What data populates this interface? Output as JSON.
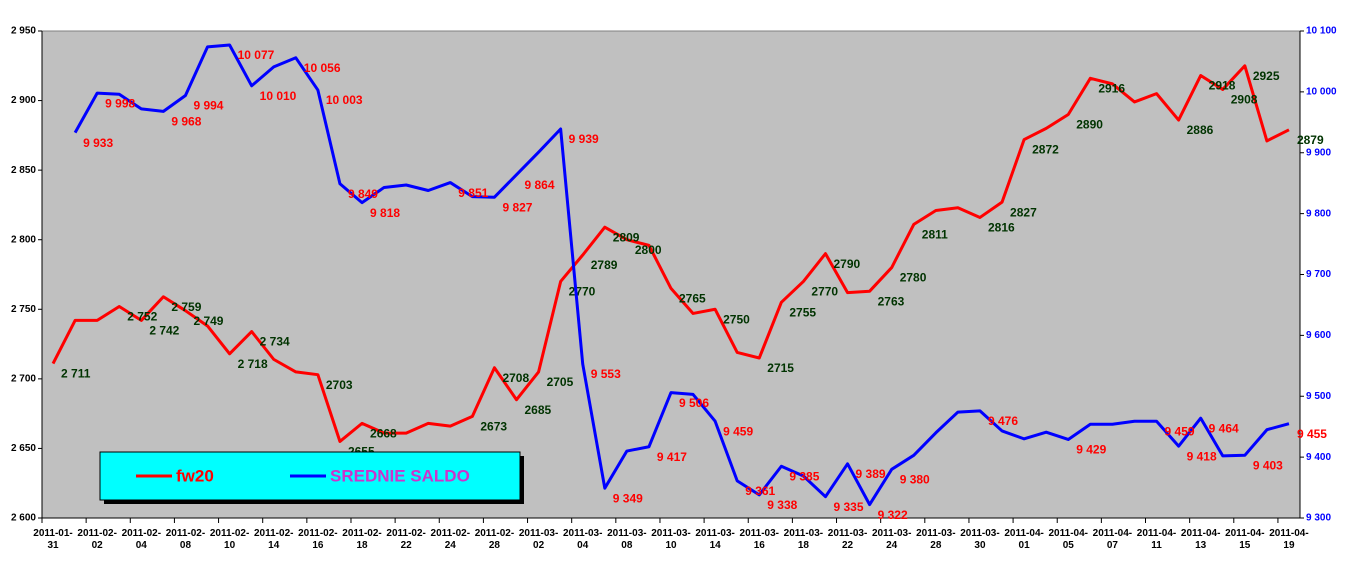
{
  "chart_data": {
    "type": "line",
    "categories": [
      "2011-01-31",
      null,
      "2011-02-02",
      null,
      "2011-02-04",
      null,
      "2011-02-08",
      null,
      "2011-02-10",
      null,
      "2011-02-14",
      null,
      "2011-02-16",
      null,
      "2011-02-18",
      null,
      "2011-02-22",
      null,
      "2011-02-24",
      null,
      "2011-02-28",
      null,
      "2011-03-02",
      null,
      "2011-03-04",
      null,
      "2011-03-08",
      null,
      "2011-03-10",
      null,
      "2011-03-14",
      null,
      "2011-03-16",
      null,
      "2011-03-18",
      null,
      "2011-03-22",
      null,
      "2011-03-24",
      null,
      "2011-03-28",
      null,
      "2011-03-30",
      null,
      "2011-04-01",
      null,
      "2011-04-05",
      null,
      "2011-04-07",
      null,
      "2011-04-11",
      null,
      "2011-04-13",
      null,
      "2011-04-15",
      null,
      "2011-04-19"
    ],
    "series": [
      {
        "name": "fw20",
        "color": "#ff0000",
        "legend_text_color": "#ff0000",
        "label_color": "#003300",
        "values": [
          2711,
          2742,
          2742,
          2752,
          2742,
          2759,
          2749,
          2738,
          2718,
          2734,
          2714,
          2705,
          2703,
          2655,
          2668,
          2661,
          2661,
          2668,
          2666,
          2673,
          2708,
          2685,
          2705,
          2770,
          2789,
          2809,
          2800,
          2796,
          2765,
          2747,
          2750,
          2719,
          2715,
          2755,
          2770,
          2790,
          2762,
          2763,
          2780,
          2811,
          2821,
          2823,
          2816,
          2827,
          2872,
          2880,
          2890,
          2916,
          2912,
          2899,
          2905,
          2886,
          2918,
          2908,
          2925,
          2871,
          2879
        ],
        "value_labels": [
          "2 711",
          null,
          null,
          "2 752",
          "2 742",
          "2 759",
          "2 749",
          null,
          "2 718",
          "2 734",
          null,
          null,
          "2703",
          "2655",
          "2668",
          null,
          null,
          null,
          null,
          "2673",
          "2708",
          "2685",
          "2705",
          "2770",
          "2789",
          "2809",
          "2800",
          null,
          "2765",
          null,
          "2750",
          null,
          "2715",
          "2755",
          "2770",
          "2790",
          null,
          "2763",
          "2780",
          "2811",
          null,
          null,
          "2816",
          "2827",
          "2872",
          null,
          "2890",
          "2916",
          null,
          null,
          null,
          "2886",
          "2918",
          "2908",
          "2925",
          null,
          "2879"
        ]
      },
      {
        "name": "SREDNIE SALDO",
        "color": "#0000ff",
        "legend_text_color": "#cc33cc",
        "label_color": "#ff0000",
        "axis": "y2",
        "values": [
          null,
          9933,
          9998,
          9996,
          9972,
          9968,
          9994,
          10074,
          10077,
          10010,
          10041,
          10056,
          10003,
          9849,
          9818,
          9843,
          9847,
          9838,
          9851,
          9828,
          9827,
          9864,
          9901,
          9939,
          9553,
          9349,
          9410,
          9417,
          9506,
          9503,
          9459,
          9361,
          9338,
          9385,
          9369,
          9335,
          9389,
          9322,
          9380,
          9403,
          9440,
          9474,
          9476,
          9443,
          9430,
          9441,
          9429,
          9454,
          9454,
          9459,
          9459,
          9418,
          9464,
          9402,
          9403,
          9445,
          9455
        ],
        "value_labels": [
          null,
          "9 933",
          "9 998",
          null,
          null,
          "9 968",
          "9 994",
          null,
          "10 077",
          "10 010",
          null,
          "10 056",
          "10 003",
          "9 849",
          "9 818",
          null,
          null,
          null,
          "9 851",
          null,
          "9 827",
          "9 864",
          null,
          "9 939",
          "9 553",
          "9 349",
          null,
          "9 417",
          "9 506",
          null,
          "9 459",
          "9 361",
          "9 338",
          "9 385",
          null,
          "9 335",
          "9 389",
          "9 322",
          "9 380",
          null,
          null,
          null,
          "9 476",
          null,
          null,
          null,
          "9 429",
          null,
          null,
          null,
          "9 459",
          "9 418",
          "9 464",
          null,
          "9 403",
          null,
          "9 455"
        ]
      }
    ],
    "ylim": [
      2600,
      2950
    ],
    "yticks": [
      {
        "value": 2600,
        "label": "2 600"
      },
      {
        "value": 2650,
        "label": "2 650"
      },
      {
        "value": 2700,
        "label": "2 700"
      },
      {
        "value": 2750,
        "label": "2 750"
      },
      {
        "value": 2800,
        "label": "2 800"
      },
      {
        "value": 2850,
        "label": "2 850"
      },
      {
        "value": 2900,
        "label": "2 900"
      },
      {
        "value": 2950,
        "label": "2 950"
      }
    ],
    "y2lim": [
      9300,
      10100
    ],
    "y2ticks": [
      {
        "value": 9300,
        "label": "9 300"
      },
      {
        "value": 9400,
        "label": "9 400"
      },
      {
        "value": 9500,
        "label": "9 500"
      },
      {
        "value": 9600,
        "label": "9 600"
      },
      {
        "value": 9700,
        "label": "9 700"
      },
      {
        "value": 9800,
        "label": "9 800"
      },
      {
        "value": 9900,
        "label": "9 900"
      },
      {
        "value": 10000,
        "label": "10 000"
      },
      {
        "value": 10100,
        "label": "10 100"
      }
    ],
    "y2_color": "#0000ff",
    "plot_background": "#c0c0c0",
    "legend_background": "#00ffff",
    "grid": false
  }
}
